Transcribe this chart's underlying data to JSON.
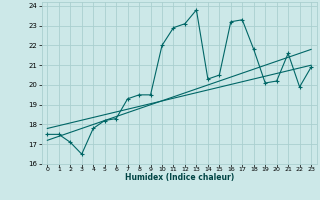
{
  "xlabel": "Humidex (Indice chaleur)",
  "bg_color": "#cce8e8",
  "grid_color": "#aacfcf",
  "line_color": "#006666",
  "xlim": [
    -0.5,
    23.5
  ],
  "ylim": [
    16,
    24.2
  ],
  "xticks": [
    0,
    1,
    2,
    3,
    4,
    5,
    6,
    7,
    8,
    9,
    10,
    11,
    12,
    13,
    14,
    15,
    16,
    17,
    18,
    19,
    20,
    21,
    22,
    23
  ],
  "yticks": [
    16,
    17,
    18,
    19,
    20,
    21,
    22,
    23,
    24
  ],
  "series1": {
    "x": [
      0,
      1,
      2,
      3,
      4,
      5,
      6,
      7,
      8,
      9,
      10,
      11,
      12,
      13,
      14,
      15,
      16,
      17,
      18,
      19,
      20,
      21,
      22,
      23
    ],
    "y": [
      17.5,
      17.5,
      17.1,
      16.5,
      17.8,
      18.2,
      18.3,
      19.3,
      19.5,
      19.5,
      22.0,
      22.9,
      23.1,
      23.8,
      20.3,
      20.5,
      23.2,
      23.3,
      21.8,
      20.1,
      20.2,
      21.6,
      19.9,
      20.9
    ]
  },
  "series2": {
    "x": [
      0,
      23
    ],
    "y": [
      17.2,
      21.8
    ]
  },
  "series3": {
    "x": [
      0,
      23
    ],
    "y": [
      17.8,
      21.0
    ]
  }
}
